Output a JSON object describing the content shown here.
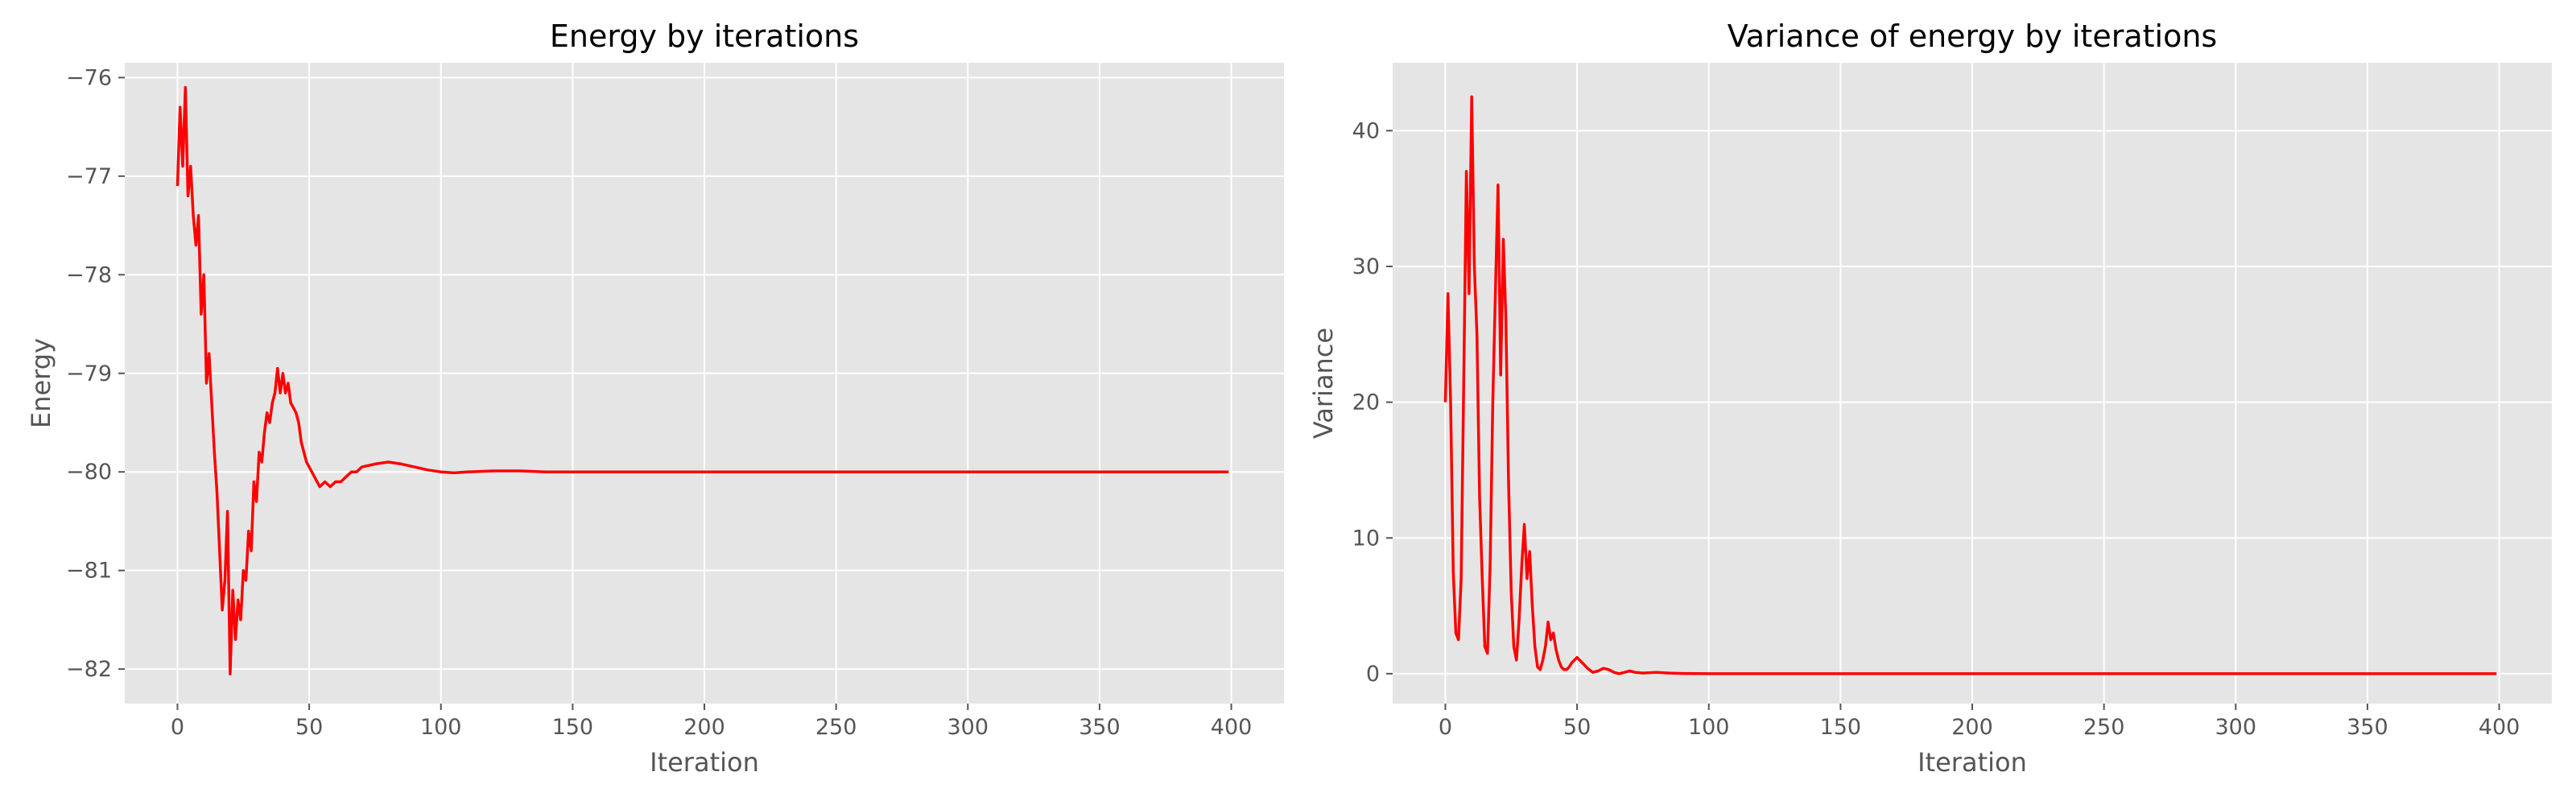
{
  "colors": {
    "figure_background": "#ffffff",
    "axes_background": "#e5e5e5",
    "grid": "#ffffff",
    "line": "#ff0000",
    "tick_text": "#555555",
    "title_text": "#000000"
  },
  "chart_data": [
    {
      "type": "line",
      "title": "Energy by iterations",
      "xlabel": "Iteration",
      "ylabel": "Energy",
      "xlim": [
        -20,
        420
      ],
      "ylim": [
        -82.35,
        -75.85
      ],
      "xticks": [
        0,
        50,
        100,
        150,
        200,
        250,
        300,
        350,
        400
      ],
      "yticks": [
        -82,
        -81,
        -80,
        -79,
        -78,
        -77,
        -76
      ],
      "grid": true,
      "legend": "none",
      "series": [
        {
          "color": "#ff0000",
          "x": [
            0,
            1,
            2,
            3,
            4,
            5,
            6,
            7,
            8,
            9,
            10,
            11,
            12,
            13,
            14,
            15,
            16,
            17,
            18,
            19,
            20,
            21,
            22,
            23,
            24,
            25,
            26,
            27,
            28,
            29,
            30,
            31,
            32,
            33,
            34,
            35,
            36,
            37,
            38,
            39,
            40,
            41,
            42,
            43,
            44,
            45,
            46,
            47,
            48,
            49,
            50,
            52,
            54,
            56,
            58,
            60,
            62,
            64,
            66,
            68,
            70,
            75,
            80,
            85,
            90,
            95,
            100,
            105,
            110,
            120,
            130,
            140,
            150,
            175,
            200,
            250,
            300,
            350,
            399
          ],
          "y": [
            -77.1,
            -76.3,
            -76.9,
            -76.1,
            -77.2,
            -76.9,
            -77.4,
            -77.7,
            -77.4,
            -78.4,
            -78.0,
            -79.1,
            -78.8,
            -79.3,
            -79.8,
            -80.2,
            -80.8,
            -81.4,
            -81.1,
            -80.4,
            -82.05,
            -81.2,
            -81.7,
            -81.3,
            -81.5,
            -81.0,
            -81.1,
            -80.6,
            -80.8,
            -80.1,
            -80.3,
            -79.8,
            -79.9,
            -79.6,
            -79.4,
            -79.5,
            -79.3,
            -79.2,
            -78.95,
            -79.2,
            -79.0,
            -79.2,
            -79.1,
            -79.3,
            -79.35,
            -79.4,
            -79.5,
            -79.7,
            -79.8,
            -79.9,
            -79.95,
            -80.05,
            -80.15,
            -80.1,
            -80.15,
            -80.1,
            -80.1,
            -80.05,
            -80.0,
            -80.0,
            -79.95,
            -79.92,
            -79.9,
            -79.92,
            -79.95,
            -79.98,
            -80.0,
            -80.01,
            -80.0,
            -79.99,
            -79.99,
            -80.0,
            -80.0,
            -80.0,
            -80.0,
            -80.0,
            -80.0,
            -80.0,
            -80.0
          ]
        }
      ]
    },
    {
      "type": "line",
      "title": "Variance of energy by iterations",
      "xlabel": "Iteration",
      "ylabel": "Variance",
      "xlim": [
        -20,
        420
      ],
      "ylim": [
        -2.2,
        45
      ],
      "xticks": [
        0,
        50,
        100,
        150,
        200,
        250,
        300,
        350,
        400
      ],
      "yticks": [
        0,
        10,
        20,
        30,
        40
      ],
      "grid": true,
      "legend": "none",
      "series": [
        {
          "color": "#ff0000",
          "x": [
            0,
            1,
            2,
            3,
            4,
            5,
            6,
            7,
            8,
            9,
            10,
            11,
            12,
            13,
            14,
            15,
            16,
            17,
            18,
            19,
            20,
            21,
            22,
            23,
            24,
            25,
            26,
            27,
            28,
            29,
            30,
            31,
            32,
            33,
            34,
            35,
            36,
            37,
            38,
            39,
            40,
            41,
            42,
            43,
            44,
            45,
            46,
            47,
            48,
            50,
            52,
            54,
            56,
            58,
            60,
            62,
            64,
            66,
            68,
            70,
            72,
            75,
            80,
            85,
            90,
            100,
            120,
            150,
            200,
            250,
            300,
            350,
            399
          ],
          "y": [
            20,
            28,
            20,
            7.5,
            3,
            2.5,
            7,
            22,
            37,
            28,
            42.5,
            30,
            25,
            13,
            7,
            2,
            1.5,
            8,
            20,
            28,
            36,
            22,
            32,
            26,
            14,
            6,
            2,
            1,
            4,
            8,
            11,
            7,
            9,
            5,
            2,
            0.5,
            0.3,
            1,
            2,
            3.8,
            2.5,
            3,
            1.8,
            1,
            0.5,
            0.3,
            0.3,
            0.5,
            0.8,
            1.2,
            0.8,
            0.4,
            0.1,
            0.2,
            0.4,
            0.3,
            0.1,
            0.0,
            0.1,
            0.2,
            0.1,
            0.05,
            0.1,
            0.05,
            0.02,
            0.0,
            0.0,
            0.0,
            0.0,
            0.0,
            0.0,
            0.0,
            0.0
          ]
        }
      ]
    }
  ]
}
